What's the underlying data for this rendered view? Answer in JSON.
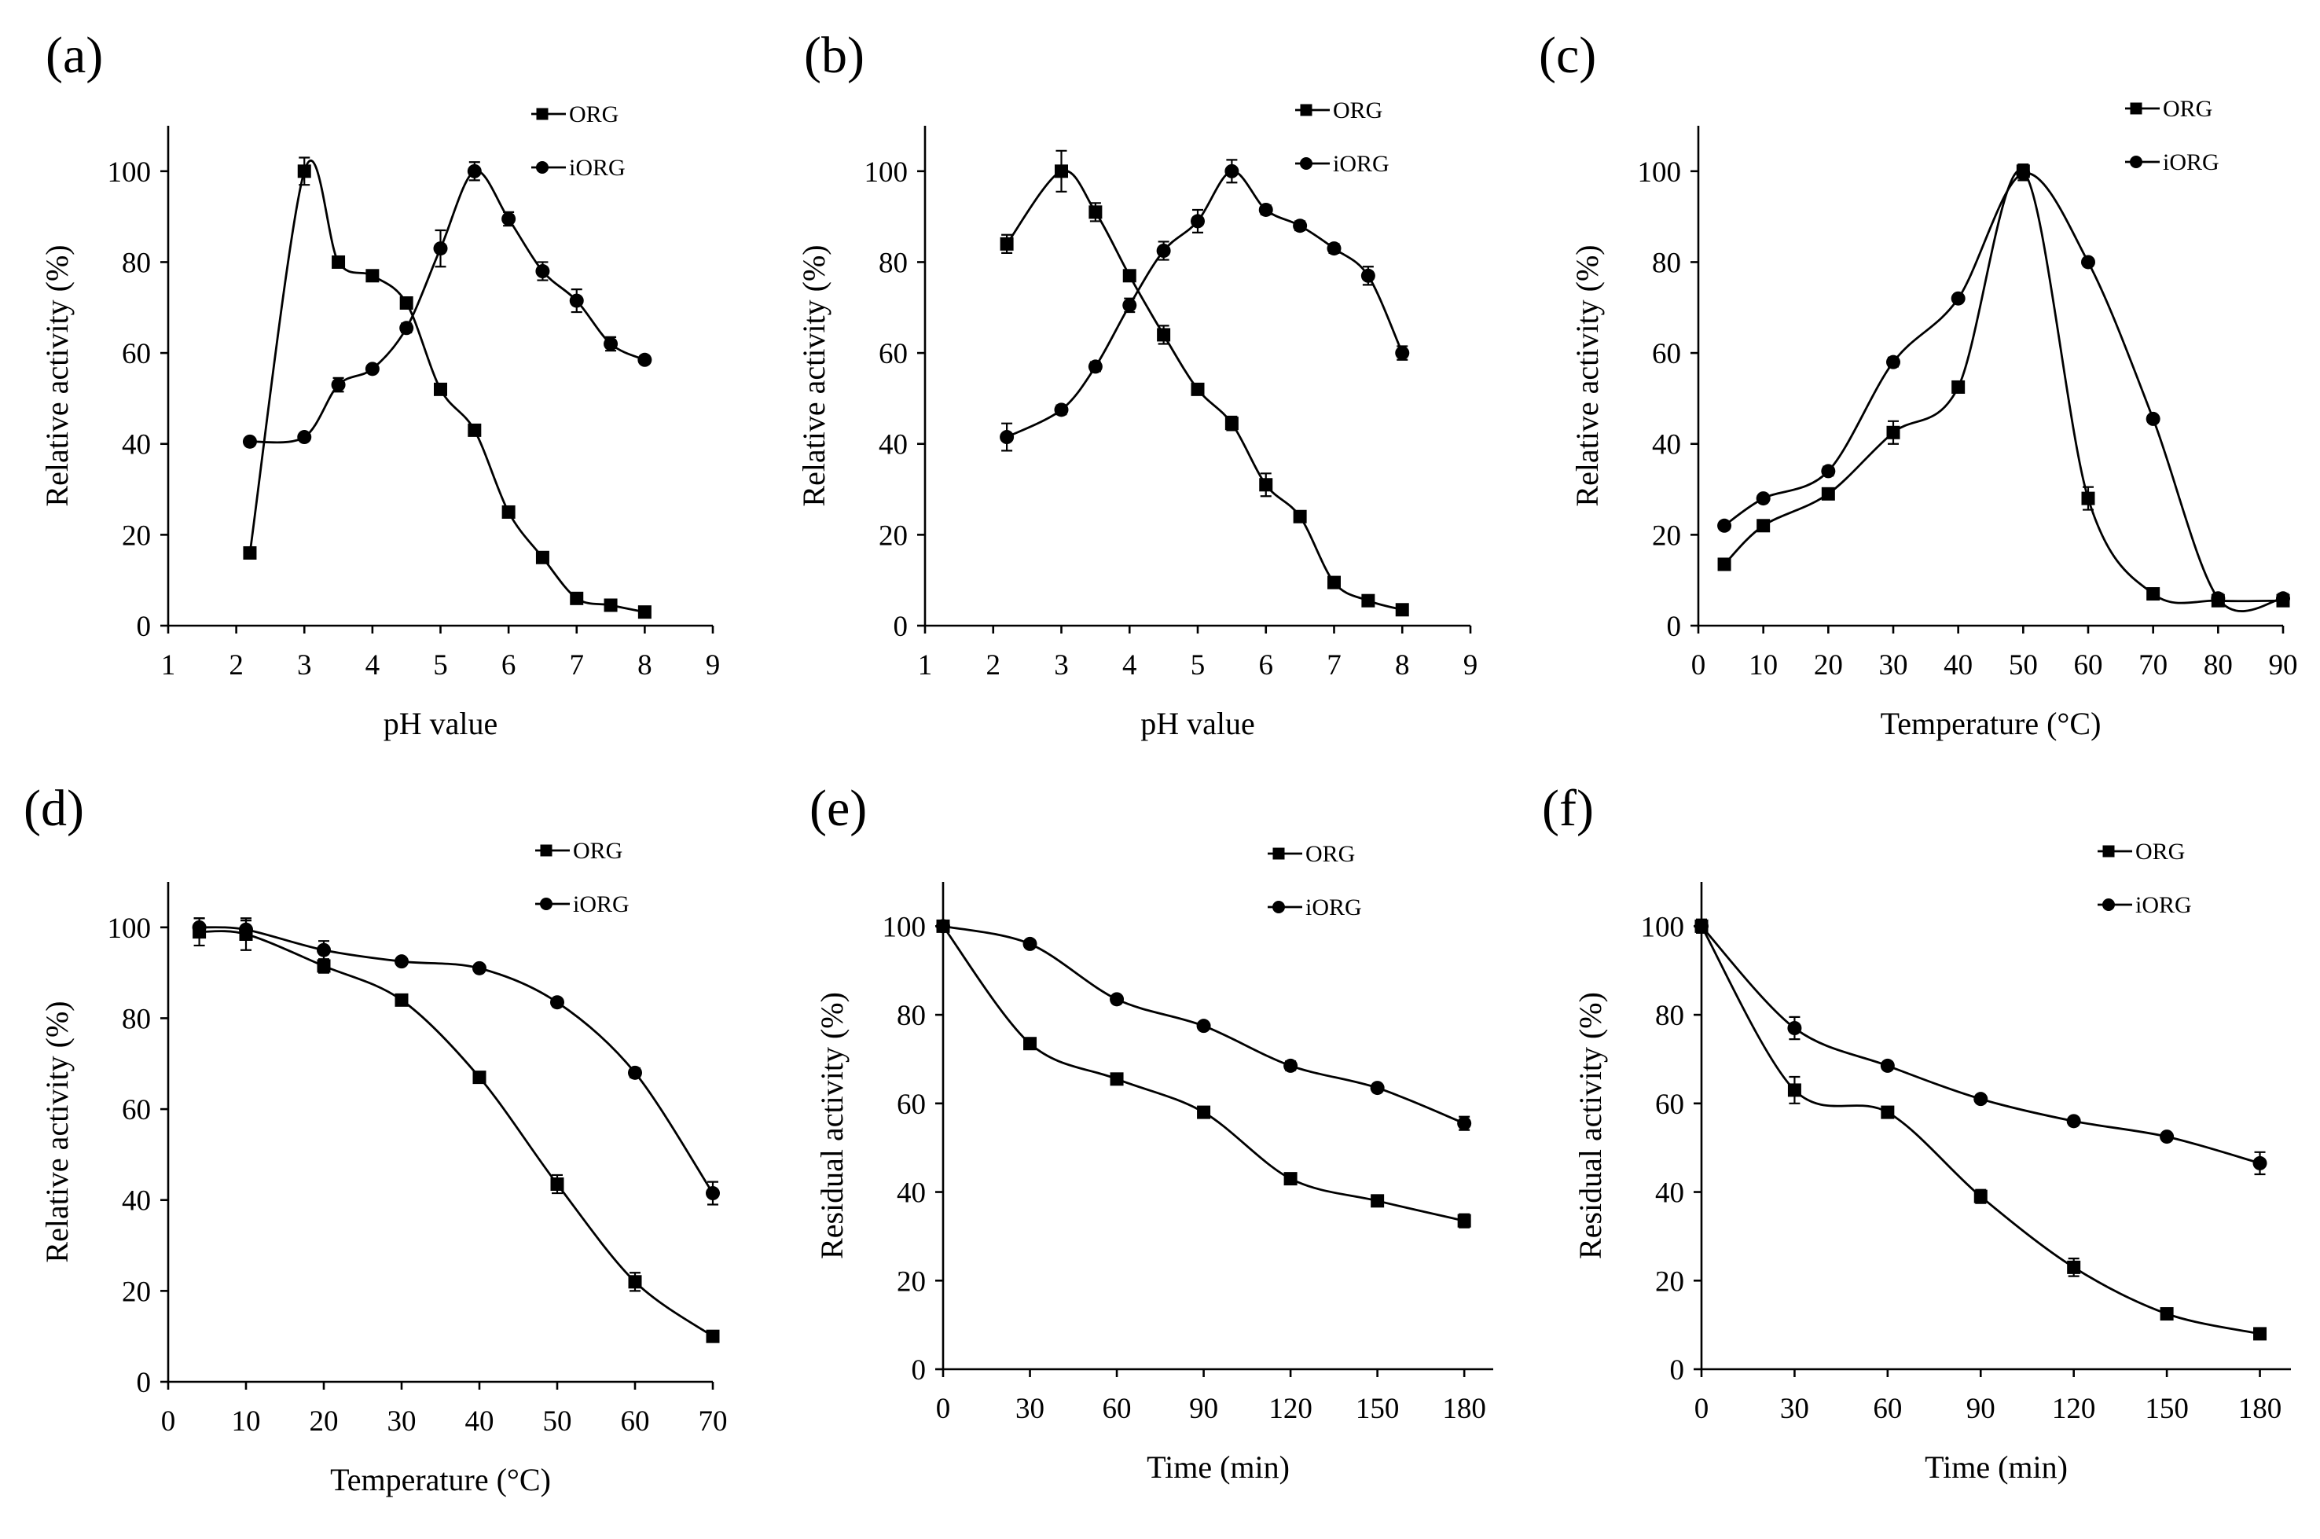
{
  "figure": {
    "legend_labels": [
      "ORG",
      "iORG"
    ]
  },
  "chart_data": [
    {
      "type": "line",
      "panel_label": "(a)",
      "xlabel": "pH  value",
      "ylabel": "Relative activity (%)",
      "xlim": [
        1,
        9
      ],
      "ylim": [
        0,
        110
      ],
      "xticks": [
        1,
        2,
        3,
        4,
        5,
        6,
        7,
        8,
        9
      ],
      "yticks": [
        0,
        20,
        40,
        60,
        80,
        100
      ],
      "grid": false,
      "legend": "top-right",
      "series": [
        {
          "name": "ORG",
          "marker": "square",
          "x": [
            2.2,
            3,
            3.5,
            4,
            4.5,
            5,
            5.5,
            6,
            6.5,
            7,
            7.5,
            8
          ],
          "y": [
            16,
            100,
            80,
            77,
            71,
            52,
            43,
            25,
            15,
            6,
            4.5,
            3
          ],
          "err": [
            0.5,
            3,
            1,
            1,
            1,
            1,
            1,
            1,
            1,
            0.5,
            0.5,
            0.5
          ]
        },
        {
          "name": "iORG",
          "marker": "circle",
          "x": [
            2.2,
            3,
            3.5,
            4,
            4.5,
            5,
            5.5,
            6,
            6.5,
            7,
            7.5,
            8
          ],
          "y": [
            40.5,
            41.5,
            53,
            56.5,
            65.5,
            83,
            100,
            89.5,
            78,
            71.5,
            62,
            58.5
          ],
          "err": [
            0.5,
            0.5,
            1.5,
            0.5,
            1,
            4,
            2,
            1.5,
            2,
            2.5,
            1.5,
            0.5
          ]
        }
      ]
    },
    {
      "type": "line",
      "panel_label": "(b)",
      "xlabel": "pH  value",
      "ylabel": "Relative activity (%)",
      "xlim": [
        1,
        9
      ],
      "ylim": [
        0,
        110
      ],
      "xticks": [
        1,
        2,
        3,
        4,
        5,
        6,
        7,
        8,
        9
      ],
      "yticks": [
        0,
        20,
        40,
        60,
        80,
        100
      ],
      "grid": false,
      "legend": "top-right",
      "series": [
        {
          "name": "ORG",
          "marker": "square",
          "x": [
            2.2,
            3,
            3.5,
            4,
            4.5,
            5,
            5.5,
            6,
            6.5,
            7,
            7.5,
            8
          ],
          "y": [
            84,
            100,
            91,
            77,
            64,
            52,
            44.5,
            31,
            24,
            9.5,
            5.5,
            3.5
          ],
          "err": [
            2,
            4.5,
            2,
            1,
            2,
            1,
            1.5,
            2.5,
            1,
            1,
            0.5,
            1
          ]
        },
        {
          "name": "iORG",
          "marker": "circle",
          "x": [
            2.2,
            3,
            3.5,
            4,
            4.5,
            5,
            5.5,
            6,
            6.5,
            7,
            7.5,
            8
          ],
          "y": [
            41.5,
            47.5,
            57,
            70.5,
            82.5,
            89,
            100,
            91.5,
            88,
            83,
            77,
            60
          ],
          "err": [
            3,
            1,
            1,
            1.5,
            2,
            2.5,
            2.5,
            1,
            1,
            1,
            2,
            1.5
          ]
        }
      ]
    },
    {
      "type": "line",
      "panel_label": "(c)",
      "xlabel": "Temperature (°C)",
      "ylabel": "Relative activity (%)",
      "xlim": [
        0,
        90
      ],
      "ylim": [
        0,
        110
      ],
      "xticks": [
        0,
        10,
        20,
        30,
        40,
        50,
        60,
        70,
        80,
        90
      ],
      "yticks": [
        0,
        20,
        40,
        60,
        80,
        100
      ],
      "grid": false,
      "legend": "top-right",
      "series": [
        {
          "name": "ORG",
          "marker": "square",
          "x": [
            4,
            10,
            20,
            30,
            40,
            50,
            60,
            70,
            80,
            90
          ],
          "y": [
            13.5,
            22,
            29,
            42.5,
            52.5,
            100,
            28,
            7,
            5.5,
            5.5
          ],
          "err": [
            0.5,
            0.5,
            0.5,
            2.5,
            1,
            1.5,
            2.5,
            0.5,
            0.5,
            0.5
          ]
        },
        {
          "name": "iORG",
          "marker": "circle",
          "x": [
            4,
            10,
            20,
            30,
            40,
            50,
            60,
            70,
            80,
            90
          ],
          "y": [
            22,
            28,
            34,
            58,
            72,
            99.5,
            80,
            45.5,
            6,
            6
          ],
          "err": [
            0.5,
            0.5,
            1,
            1,
            0.5,
            1.5,
            0.5,
            0.5,
            1,
            1
          ]
        }
      ]
    },
    {
      "type": "line",
      "panel_label": "(d)",
      "xlabel": "Temperature (°C)",
      "ylabel": "Relative activity (%)",
      "xlim": [
        0,
        70
      ],
      "ylim": [
        0,
        110
      ],
      "xticks": [
        0,
        10,
        20,
        30,
        40,
        50,
        60,
        70
      ],
      "yticks": [
        0,
        20,
        40,
        60,
        80,
        100
      ],
      "grid": false,
      "legend": "top-right",
      "series": [
        {
          "name": "ORG",
          "marker": "square",
          "x": [
            4,
            10,
            20,
            30,
            40,
            50,
            60,
            70
          ],
          "y": [
            99,
            98.5,
            91.5,
            84,
            67,
            43.5,
            22,
            10
          ],
          "err": [
            3,
            3.5,
            1.5,
            1,
            1,
            2,
            2,
            0.5
          ]
        },
        {
          "name": "iORG",
          "marker": "circle",
          "x": [
            4,
            10,
            20,
            30,
            40,
            50,
            60,
            70
          ],
          "y": [
            100,
            99.5,
            95,
            92.5,
            91,
            83.5,
            68,
            41.5
          ],
          "err": [
            2,
            2,
            2,
            0.5,
            0.5,
            0.5,
            1,
            2.5
          ]
        }
      ]
    },
    {
      "type": "line",
      "panel_label": "(e)",
      "xlabel": "Time (min)",
      "ylabel": "Residual activity (%)",
      "xlim": [
        0,
        190
      ],
      "ylim": [
        0,
        110
      ],
      "xticks": [
        0,
        30,
        60,
        90,
        120,
        150,
        180
      ],
      "yticks": [
        0,
        20,
        40,
        60,
        80,
        100
      ],
      "grid": false,
      "legend": "top-right",
      "series": [
        {
          "name": "ORG",
          "marker": "square",
          "x": [
            0,
            30,
            60,
            90,
            120,
            150,
            180
          ],
          "y": [
            100,
            73.5,
            65.5,
            58,
            43,
            38,
            33.5
          ],
          "err": [
            0.5,
            1,
            1,
            0.5,
            0.5,
            0.5,
            1.5
          ]
        },
        {
          "name": "iORG",
          "marker": "circle",
          "x": [
            0,
            30,
            60,
            90,
            120,
            150,
            180
          ],
          "y": [
            100,
            96,
            83.5,
            77.5,
            68.5,
            63.5,
            55.5
          ],
          "err": [
            0.5,
            0.5,
            0.5,
            0.5,
            1,
            0.5,
            1.5
          ]
        }
      ]
    },
    {
      "type": "line",
      "panel_label": "(f)",
      "xlabel": "Time (min)",
      "ylabel": "Residual activity (%)",
      "xlim": [
        0,
        190
      ],
      "ylim": [
        0,
        110
      ],
      "xticks": [
        0,
        30,
        60,
        90,
        120,
        150,
        180
      ],
      "yticks": [
        0,
        20,
        40,
        60,
        80,
        100
      ],
      "grid": false,
      "legend": "top-right",
      "series": [
        {
          "name": "ORG",
          "marker": "square",
          "x": [
            0,
            30,
            60,
            90,
            120,
            150,
            180
          ],
          "y": [
            100,
            63,
            58,
            39,
            23,
            12.5,
            8
          ],
          "err": [
            1.5,
            3,
            0.5,
            1.5,
            2,
            0.5,
            0.5
          ]
        },
        {
          "name": "iORG",
          "marker": "circle",
          "x": [
            0,
            30,
            60,
            90,
            120,
            150,
            180
          ],
          "y": [
            100,
            77,
            68.5,
            61,
            56,
            52.5,
            46.5
          ],
          "err": [
            1.5,
            2.5,
            0.5,
            0.5,
            0.5,
            0.5,
            2.5
          ]
        }
      ]
    }
  ]
}
